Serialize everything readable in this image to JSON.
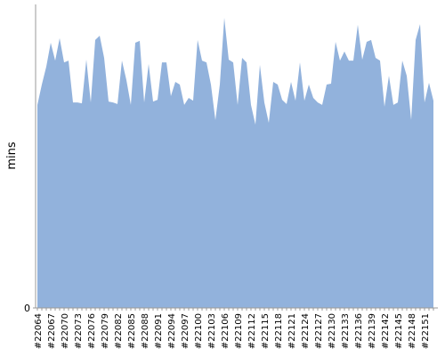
{
  "chart_data": {
    "type": "area",
    "ylabel": "mins",
    "ylim": [
      0,
      100
    ],
    "yticks": [
      0
    ],
    "color": "#92b2dc",
    "categories": [
      "#22064",
      null,
      null,
      "#22067",
      null,
      null,
      "#22070",
      null,
      null,
      "#22073",
      null,
      null,
      "#22076",
      null,
      null,
      "#22079",
      null,
      null,
      "#22082",
      null,
      null,
      "#22085",
      null,
      null,
      "#22088",
      null,
      null,
      "#22091",
      null,
      null,
      "#22094",
      null,
      null,
      "#22097",
      null,
      null,
      "#22100",
      null,
      null,
      "#22103",
      null,
      null,
      "#22106",
      null,
      null,
      "#22109",
      null,
      null,
      "#22112",
      null,
      null,
      "#22115",
      null,
      null,
      "#22118",
      null,
      null,
      "#22121",
      null,
      null,
      "#22124",
      null,
      null,
      "#22127",
      null,
      null,
      "#22130",
      null,
      null,
      "#22133",
      null,
      null,
      "#22136",
      null,
      null,
      "#22139",
      null,
      null,
      "#22142",
      null,
      null,
      "#22145",
      null,
      null,
      "#22148",
      null,
      null,
      "#22151",
      null,
      null
    ],
    "values": [
      66.9,
      73.6,
      79.5,
      87.4,
      81.5,
      88.9,
      80.9,
      81.5,
      67.7,
      67.7,
      67.4,
      81.8,
      67.7,
      88.3,
      89.7,
      82.4,
      68.0,
      67.7,
      67.2,
      81.5,
      75.1,
      66.9,
      87.4,
      88.0,
      67.7,
      80.4,
      68.0,
      68.6,
      80.9,
      80.9,
      69.8,
      74.5,
      73.6,
      66.9,
      69.2,
      68.3,
      88.3,
      81.5,
      80.9,
      73.6,
      61.9,
      73.6,
      95.6,
      81.8,
      80.9,
      66.9,
      82.4,
      80.9,
      66.9,
      60.4,
      80.1,
      67.7,
      61.0,
      74.5,
      73.6,
      68.6,
      67.2,
      74.5,
      68.3,
      80.9,
      68.3,
      73.6,
      69.2,
      67.7,
      66.9,
      73.6,
      73.9,
      87.7,
      81.5,
      84.5,
      81.5,
      81.5,
      93.3,
      81.8,
      87.7,
      88.3,
      82.4,
      81.5,
      66.3,
      76.5,
      66.9,
      67.7,
      81.5,
      76.5,
      61.9,
      88.3,
      93.5,
      67.7,
      74.2,
      68.3
    ]
  }
}
